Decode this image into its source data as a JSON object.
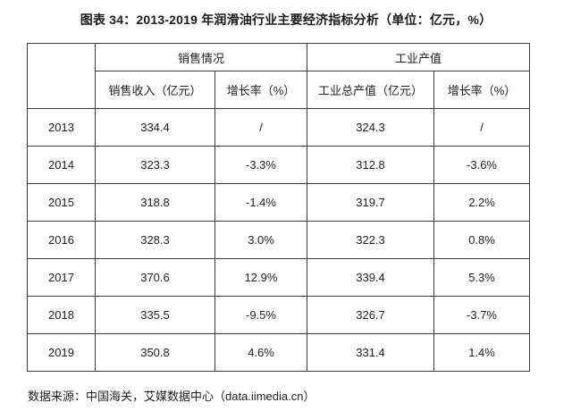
{
  "title": "图表 34：2013-2019 年润滑油行业主要经济指标分析（单位：亿元，%）",
  "table": {
    "group_headers": [
      "销售情况",
      "工业产值"
    ],
    "column_headers": [
      "销售收入（亿元）",
      "增长率（%）",
      "工业总产值（亿元）",
      "增长率（%）"
    ],
    "rows": [
      {
        "year": "2013",
        "sales_revenue": "334.4",
        "sales_growth": "/",
        "industrial_output": "324.3",
        "output_growth": "/"
      },
      {
        "year": "2014",
        "sales_revenue": "323.3",
        "sales_growth": "-3.3%",
        "industrial_output": "312.8",
        "output_growth": "-3.6%"
      },
      {
        "year": "2015",
        "sales_revenue": "318.8",
        "sales_growth": "-1.4%",
        "industrial_output": "319.7",
        "output_growth": "2.2%"
      },
      {
        "year": "2016",
        "sales_revenue": "328.3",
        "sales_growth": "3.0%",
        "industrial_output": "322.3",
        "output_growth": "0.8%"
      },
      {
        "year": "2017",
        "sales_revenue": "370.6",
        "sales_growth": "12.9%",
        "industrial_output": "339.4",
        "output_growth": "5.3%"
      },
      {
        "year": "2018",
        "sales_revenue": "335.5",
        "sales_growth": "-9.5%",
        "industrial_output": "326.7",
        "output_growth": "-3.7%"
      },
      {
        "year": "2019",
        "sales_revenue": "350.8",
        "sales_growth": "4.6%",
        "industrial_output": "331.4",
        "output_growth": "1.4%"
      }
    ]
  },
  "footer": {
    "source": "数据来源：中国海关，艾媒数据中心（data.iimedia.cn）"
  },
  "colors": {
    "background": "#ffffff",
    "border": "#3a3a3a",
    "text": "#1f1f1f"
  },
  "chart_data": {
    "type": "table",
    "title": "图表 34：2013-2019 年润滑油行业主要经济指标分析（单位：亿元，%）",
    "categories": [
      "2013",
      "2014",
      "2015",
      "2016",
      "2017",
      "2018",
      "2019"
    ],
    "series": [
      {
        "name": "销售收入（亿元）",
        "values": [
          334.4,
          323.3,
          318.8,
          328.3,
          370.6,
          335.5,
          350.8
        ]
      },
      {
        "name": "销售收入增长率（%）",
        "values": [
          null,
          -3.3,
          -1.4,
          3.0,
          12.9,
          -9.5,
          4.6
        ]
      },
      {
        "name": "工业总产值（亿元）",
        "values": [
          324.3,
          312.8,
          319.7,
          322.3,
          339.4,
          326.7,
          331.4
        ]
      },
      {
        "name": "工业总产值增长率（%）",
        "values": [
          null,
          -3.6,
          2.2,
          0.8,
          5.3,
          -3.7,
          1.4
        ]
      }
    ],
    "source": "数据来源：中国海关，艾媒数据中心（data.iimedia.cn）"
  }
}
